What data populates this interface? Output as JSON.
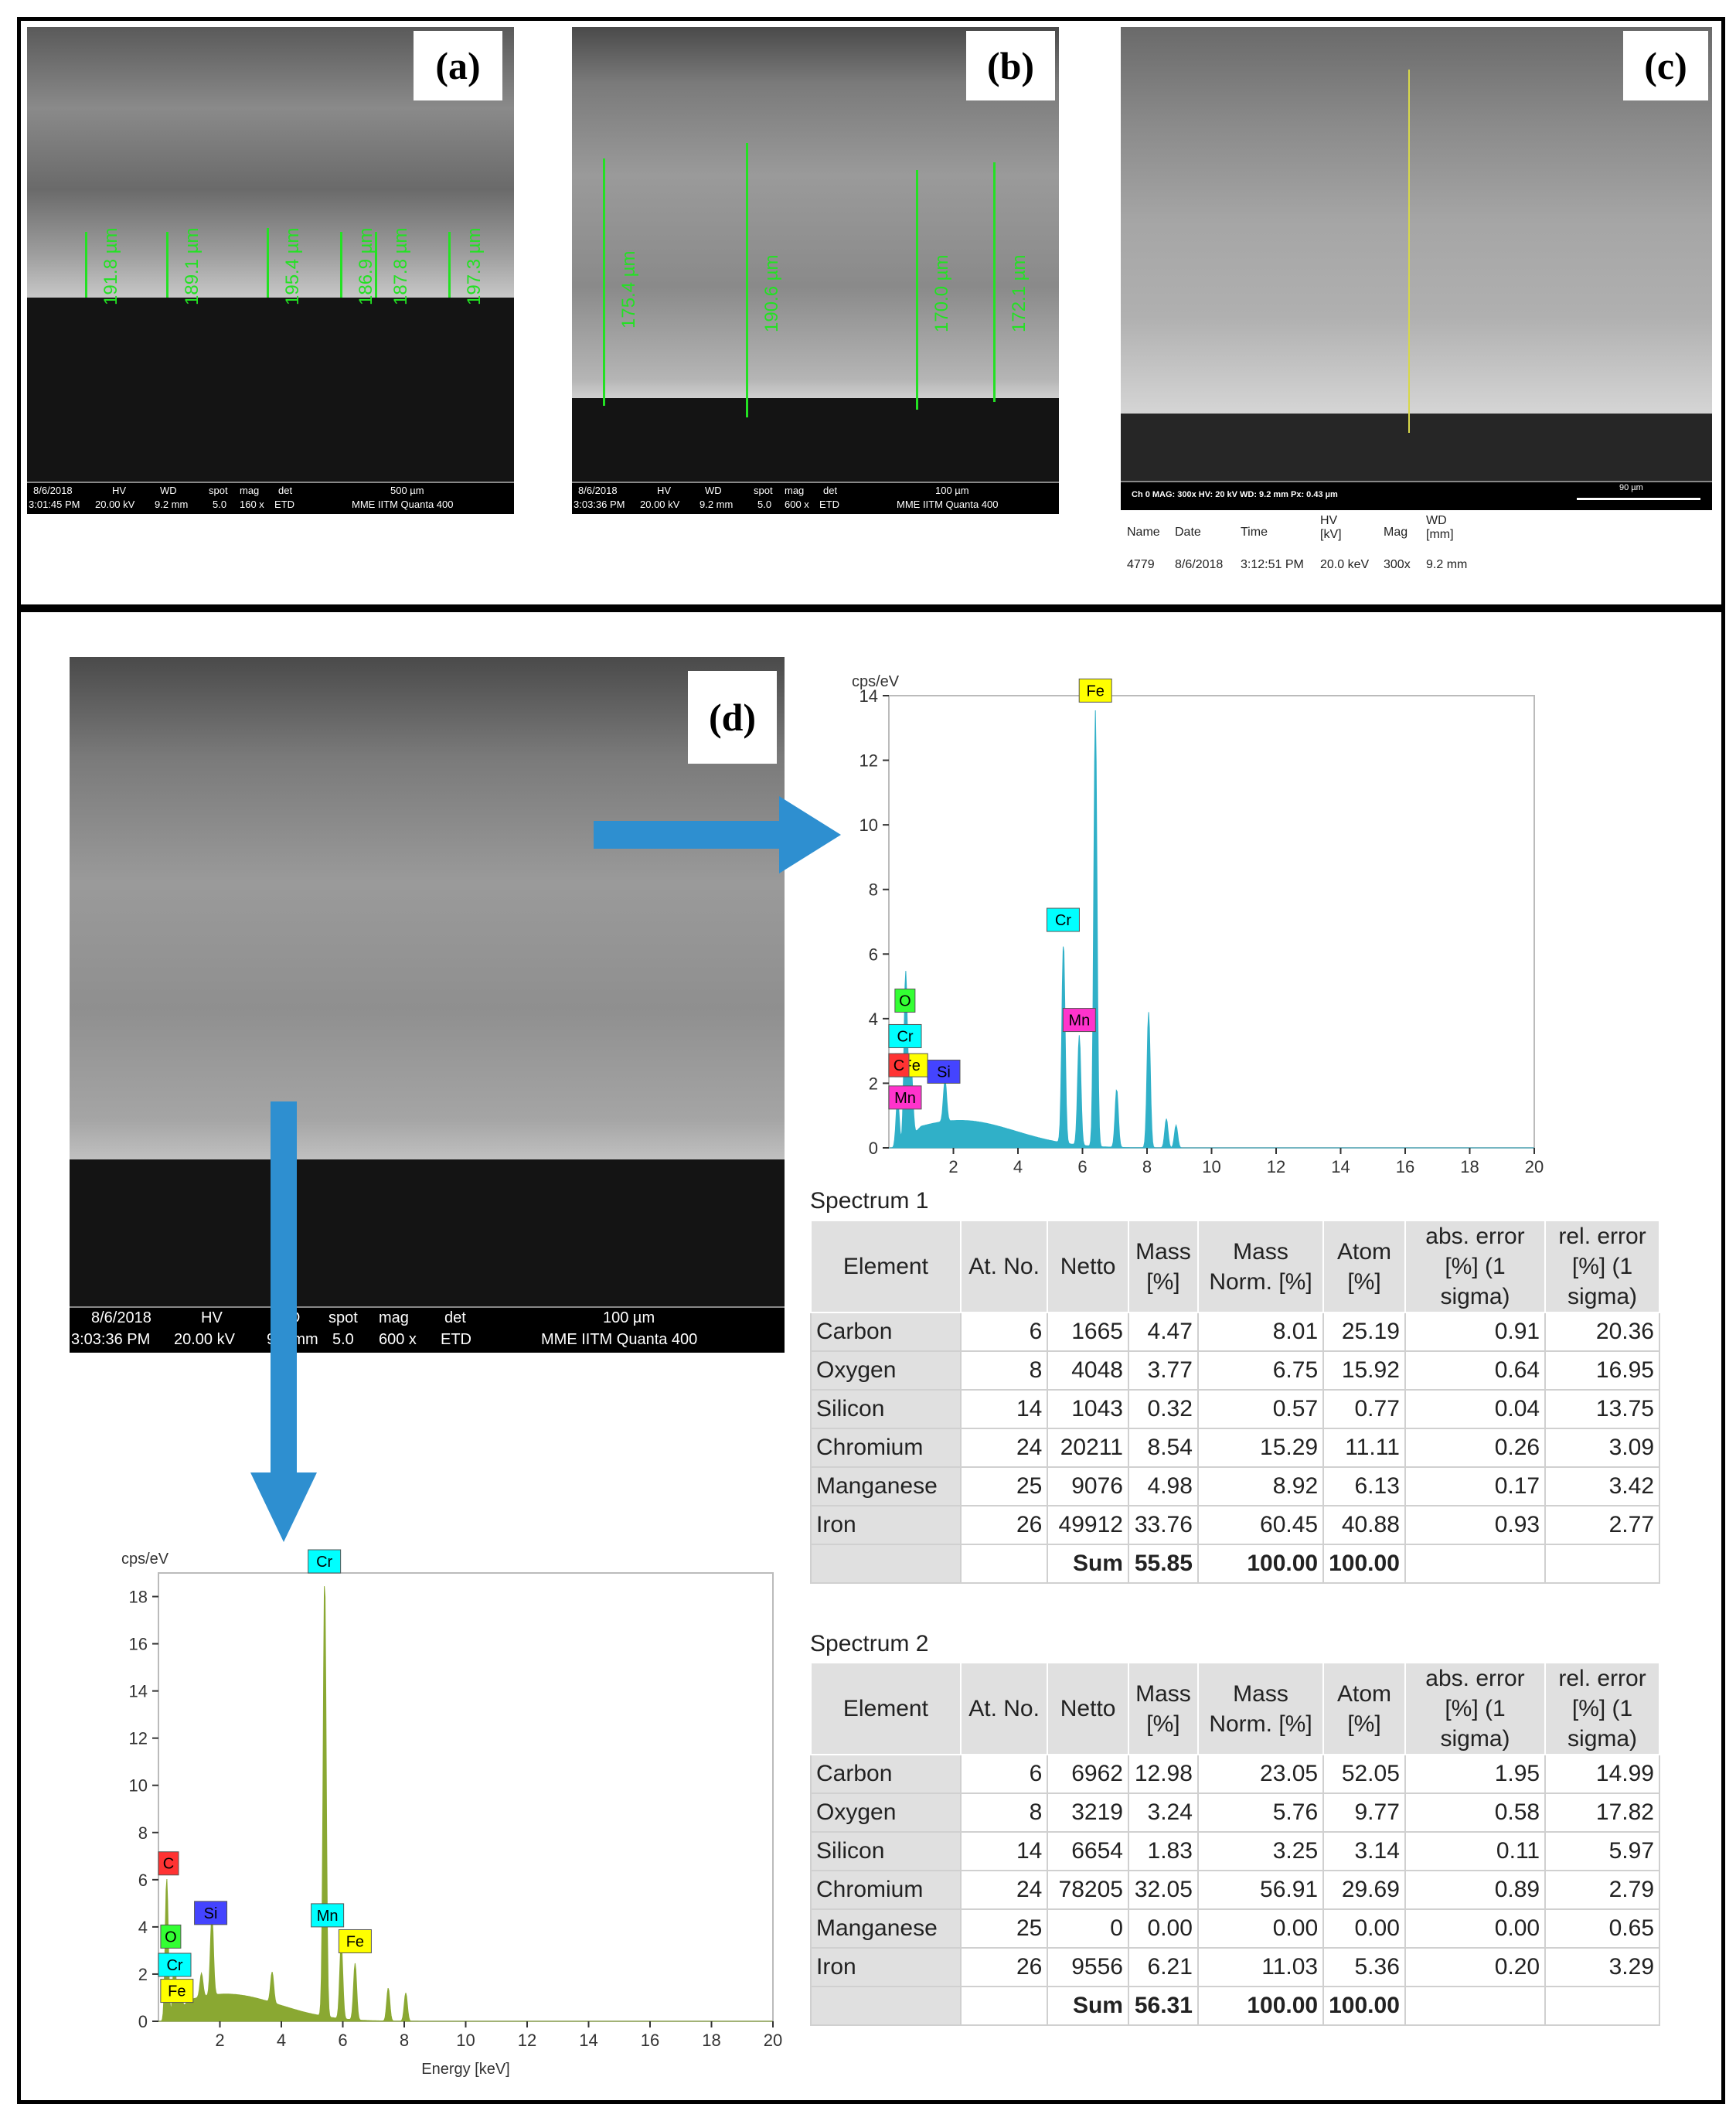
{
  "panels": {
    "a": {
      "label": "(a)",
      "measurements": [
        "191.8 µm",
        "189.1 µm",
        "195.4 µm",
        "186.9 µm",
        "187.8 µm",
        "197.3 µm"
      ],
      "bar": {
        "date": "8/6/2018",
        "time": "3:01:45 PM",
        "hv_label": "HV",
        "hv": "20.00 kV",
        "wd_label": "WD",
        "wd": "9.2 mm",
        "spot_label": "spot",
        "spot": "5.0",
        "mag_label": "mag",
        "mag": "160 x",
        "det_label": "det",
        "det": "ETD",
        "scale": "500 µm",
        "instrument": "MME IITM Quanta 400"
      }
    },
    "b": {
      "label": "(b)",
      "measurements": [
        "175.4 µm",
        "190.6 µm",
        "170.0 µm",
        "172.1 µm"
      ],
      "bar": {
        "date": "8/6/2018",
        "time": "3:03:36 PM",
        "hv_label": "HV",
        "hv": "20.00 kV",
        "wd_label": "WD",
        "wd": "9.2 mm",
        "spot_label": "spot",
        "spot": "5.0",
        "mag_label": "mag",
        "mag": "600 x",
        "det_label": "det",
        "det": "ETD",
        "scale": "100 µm",
        "instrument": "MME IITM Quanta 400"
      }
    },
    "c": {
      "label": "(c)",
      "bar": {
        "info": "Ch 0   MAG: 300x   HV: 20 kV   WD: 9.2 mm   Px: 0.43 µm",
        "scale": "90 µm"
      },
      "meta_headers": [
        "Name",
        "Date",
        "Time",
        "HV [kV]",
        "Mag",
        "WD [mm]"
      ],
      "meta_values": [
        "4779",
        "8/6/2018",
        "3:12:51 PM",
        "20.0 keV",
        "300x",
        "9.2 mm"
      ]
    },
    "d": {
      "label": "(d)",
      "bar": {
        "date": "8/6/2018",
        "time": "3:03:36 PM",
        "hv_label": "HV",
        "hv": "20.00 kV",
        "wd_label": "WD",
        "wd": "9.2 mm",
        "spot_label": "spot",
        "spot": "5.0",
        "mag_label": "mag",
        "mag": "600 x",
        "det_label": "det",
        "det": "ETD",
        "scale": "100 µm",
        "instrument": "MME IITM Quanta 400"
      }
    }
  },
  "chart_data": [
    {
      "type": "line",
      "ylabel": "cps/eV",
      "xlabel": "",
      "xlim": [
        0,
        20
      ],
      "ylim": [
        0,
        14
      ],
      "xticks": [
        2,
        4,
        6,
        8,
        10,
        12,
        14,
        16,
        18,
        20
      ],
      "yticks": [
        0,
        2,
        4,
        6,
        8,
        10,
        12,
        14
      ],
      "grid": false,
      "color": "#30b0c8",
      "peaks": [
        {
          "x": 0.27,
          "y": 1.5
        },
        {
          "x": 0.52,
          "y": 5.2
        },
        {
          "x": 0.64,
          "y": 1.2
        },
        {
          "x": 0.7,
          "y": 1.6
        },
        {
          "x": 1.74,
          "y": 1.3
        },
        {
          "x": 5.41,
          "y": 6.2
        },
        {
          "x": 5.9,
          "y": 3.4
        },
        {
          "x": 6.4,
          "y": 13.5
        },
        {
          "x": 7.06,
          "y": 1.8
        },
        {
          "x": 8.05,
          "y": 4.2
        },
        {
          "x": 8.6,
          "y": 0.9
        },
        {
          "x": 8.9,
          "y": 0.7
        }
      ],
      "annotations": [
        {
          "text": "Fe",
          "x": 6.4,
          "y": 13.8,
          "color": "#ffff00"
        },
        {
          "text": "Cr",
          "x": 5.4,
          "y": 6.7,
          "color": "#00ffff"
        },
        {
          "text": "Mn",
          "x": 5.9,
          "y": 3.6,
          "color": "#ff33cc"
        },
        {
          "text": "O",
          "x": 0.5,
          "y": 4.2,
          "color": "#33ff33"
        },
        {
          "text": "Cr",
          "x": 0.5,
          "y": 3.1,
          "color": "#00ffff"
        },
        {
          "text": "Fe",
          "x": 0.7,
          "y": 2.2,
          "color": "#ffff00"
        },
        {
          "text": "Si",
          "x": 1.7,
          "y": 2.0,
          "color": "#4444ff"
        },
        {
          "text": "Mn",
          "x": 0.5,
          "y": 1.2,
          "color": "#ff33cc"
        },
        {
          "text": "C",
          "x": 0.1,
          "y": 2.2,
          "color": "#ff3333"
        }
      ]
    },
    {
      "type": "line",
      "ylabel": "cps/eV",
      "xlabel": "Energy [keV]",
      "xlim": [
        0,
        20
      ],
      "ylim": [
        0,
        19
      ],
      "xticks": [
        2,
        4,
        6,
        8,
        10,
        12,
        14,
        16,
        18,
        20
      ],
      "yticks": [
        0,
        2,
        4,
        6,
        8,
        10,
        12,
        14,
        16,
        18
      ],
      "grid": false,
      "color": "#8aa832",
      "peaks": [
        {
          "x": 0.27,
          "y": 6.0
        },
        {
          "x": 0.52,
          "y": 2.5
        },
        {
          "x": 0.7,
          "y": 1.2
        },
        {
          "x": 1.74,
          "y": 3.4
        },
        {
          "x": 1.4,
          "y": 1.0
        },
        {
          "x": 3.7,
          "y": 1.3
        },
        {
          "x": 5.41,
          "y": 18.6
        },
        {
          "x": 5.95,
          "y": 3.2
        },
        {
          "x": 6.4,
          "y": 2.4
        },
        {
          "x": 7.48,
          "y": 1.4
        },
        {
          "x": 8.05,
          "y": 1.2
        }
      ],
      "annotations": [
        {
          "text": "Cr",
          "x": 5.4,
          "y": 19.0,
          "color": "#00ffff"
        },
        {
          "text": "C",
          "x": 0.2,
          "y": 6.2,
          "color": "#ff3333"
        },
        {
          "text": "Si",
          "x": 1.7,
          "y": 4.1,
          "color": "#4444ff"
        },
        {
          "text": "Mn",
          "x": 5.5,
          "y": 4.0,
          "color": "#00ffff"
        },
        {
          "text": "Fe",
          "x": 6.4,
          "y": 2.9,
          "color": "#ffff00"
        },
        {
          "text": "O",
          "x": 0.4,
          "y": 3.1,
          "color": "#33ff33"
        },
        {
          "text": "Cr",
          "x": 0.4,
          "y": 1.9,
          "color": "#00ffff"
        },
        {
          "text": "Fe",
          "x": 0.6,
          "y": 0.8,
          "color": "#ffff00"
        }
      ]
    }
  ],
  "spectra": [
    {
      "title": "Spectrum 1",
      "headers": [
        "Element",
        "At. No.",
        "Netto",
        "Mass [%]",
        "Mass Norm. [%]",
        "Atom [%]",
        "abs. error [%] (1 sigma)",
        "rel. error [%] (1 sigma)"
      ],
      "rows": [
        [
          "Carbon",
          "6",
          "1665",
          "4.47",
          "8.01",
          "25.19",
          "0.91",
          "20.36"
        ],
        [
          "Oxygen",
          "8",
          "4048",
          "3.77",
          "6.75",
          "15.92",
          "0.64",
          "16.95"
        ],
        [
          "Silicon",
          "14",
          "1043",
          "0.32",
          "0.57",
          "0.77",
          "0.04",
          "13.75"
        ],
        [
          "Chromium",
          "24",
          "20211",
          "8.54",
          "15.29",
          "11.11",
          "0.26",
          "3.09"
        ],
        [
          "Manganese",
          "25",
          "9076",
          "4.98",
          "8.92",
          "6.13",
          "0.17",
          "3.42"
        ],
        [
          "Iron",
          "26",
          "49912",
          "33.76",
          "60.45",
          "40.88",
          "0.93",
          "2.77"
        ]
      ],
      "sum": [
        "Sum",
        "55.85",
        "100.00",
        "100.00"
      ]
    },
    {
      "title": "Spectrum 2",
      "headers": [
        "Element",
        "At. No.",
        "Netto",
        "Mass [%]",
        "Mass Norm. [%]",
        "Atom [%]",
        "abs. error [%] (1 sigma)",
        "rel. error [%] (1 sigma)"
      ],
      "rows": [
        [
          "Carbon",
          "6",
          "6962",
          "12.98",
          "23.05",
          "52.05",
          "1.95",
          "14.99"
        ],
        [
          "Oxygen",
          "8",
          "3219",
          "3.24",
          "5.76",
          "9.77",
          "0.58",
          "17.82"
        ],
        [
          "Silicon",
          "14",
          "6654",
          "1.83",
          "3.25",
          "3.14",
          "0.11",
          "5.97"
        ],
        [
          "Chromium",
          "24",
          "78205",
          "32.05",
          "56.91",
          "29.69",
          "0.89",
          "2.79"
        ],
        [
          "Manganese",
          "25",
          "0",
          "0.00",
          "0.00",
          "0.00",
          "0.00",
          "0.65"
        ],
        [
          "Iron",
          "26",
          "9556",
          "6.21",
          "11.03",
          "5.36",
          "0.20",
          "3.29"
        ]
      ],
      "sum": [
        "Sum",
        "56.31",
        "100.00",
        "100.00"
      ]
    }
  ]
}
